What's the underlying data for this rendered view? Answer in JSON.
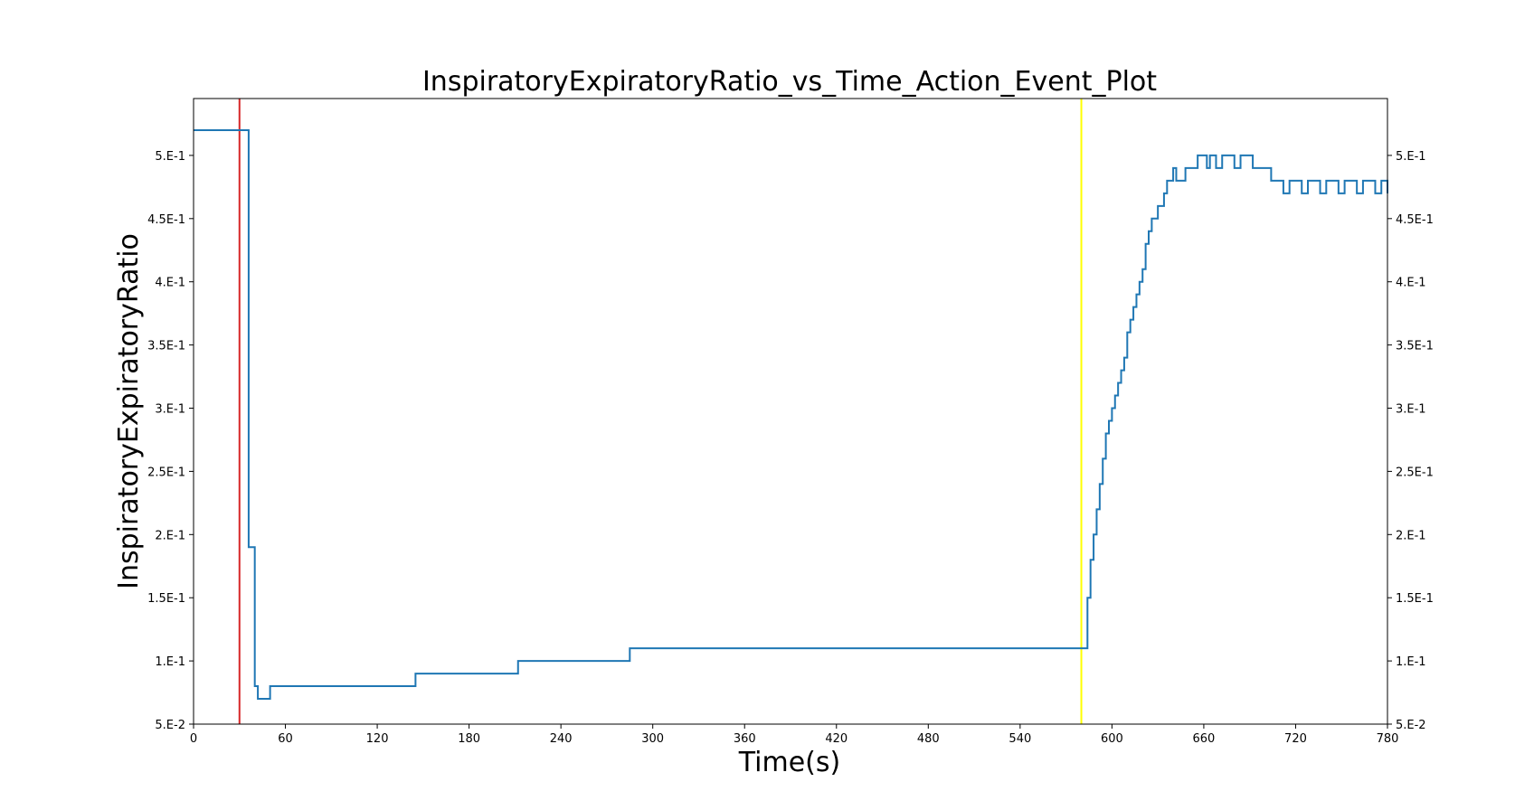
{
  "chart_data": {
    "type": "line",
    "title": "InspiratoryExpiratoryRatio_vs_Time_Action_Event_Plot",
    "xlabel": "Time(s)",
    "ylabel": "InspiratoryExpiratoryRatio",
    "xlim": [
      0,
      780
    ],
    "ylim": [
      0.05,
      0.545
    ],
    "x_ticks": [
      0,
      60,
      120,
      180,
      240,
      300,
      360,
      420,
      480,
      540,
      600,
      660,
      720,
      780
    ],
    "x_tick_labels": [
      "0",
      "60",
      "120",
      "180",
      "240",
      "300",
      "360",
      "420",
      "480",
      "540",
      "600",
      "660",
      "720",
      "780"
    ],
    "y_ticks": [
      0.05,
      0.1,
      0.15,
      0.2,
      0.25,
      0.3,
      0.35,
      0.4,
      0.45,
      0.5
    ],
    "y_tick_labels": [
      "5.E-2",
      "1.E-1",
      "1.5E-1",
      "2.E-1",
      "2.5E-1",
      "3.E-1",
      "3.5E-1",
      "4.E-1",
      "4.5E-1",
      "5.E-1"
    ],
    "right_y_ticks": true,
    "grid": false,
    "step": true,
    "event_lines": [
      {
        "x": 30,
        "color": "#d62728"
      },
      {
        "x": 580,
        "color": "#ffff00"
      }
    ],
    "series": [
      {
        "color": "#1f77b4",
        "x": [
          0,
          35,
          36,
          40,
          42,
          50,
          140,
          145,
          210,
          212,
          280,
          285,
          580,
          584,
          586,
          588,
          590,
          592,
          594,
          596,
          598,
          600,
          602,
          604,
          606,
          608,
          610,
          612,
          614,
          616,
          618,
          620,
          622,
          624,
          626,
          628,
          630,
          632,
          634,
          636,
          638,
          640,
          642,
          645,
          648,
          652,
          656,
          660,
          662,
          664,
          666,
          668,
          672,
          676,
          680,
          684,
          688,
          692,
          696,
          700,
          704,
          708,
          712,
          716,
          720,
          724,
          728,
          732,
          736,
          740,
          744,
          748,
          752,
          756,
          760,
          764,
          768,
          772,
          776,
          780
        ],
        "y": [
          0.52,
          0.52,
          0.19,
          0.08,
          0.07,
          0.08,
          0.08,
          0.09,
          0.09,
          0.1,
          0.1,
          0.11,
          0.11,
          0.15,
          0.18,
          0.2,
          0.22,
          0.24,
          0.26,
          0.28,
          0.29,
          0.3,
          0.31,
          0.32,
          0.33,
          0.34,
          0.36,
          0.37,
          0.38,
          0.39,
          0.4,
          0.41,
          0.43,
          0.44,
          0.45,
          0.45,
          0.46,
          0.46,
          0.47,
          0.48,
          0.48,
          0.49,
          0.48,
          0.48,
          0.49,
          0.49,
          0.5,
          0.5,
          0.49,
          0.5,
          0.5,
          0.49,
          0.5,
          0.5,
          0.49,
          0.5,
          0.5,
          0.49,
          0.49,
          0.49,
          0.48,
          0.48,
          0.47,
          0.48,
          0.48,
          0.47,
          0.48,
          0.48,
          0.47,
          0.48,
          0.48,
          0.47,
          0.48,
          0.48,
          0.47,
          0.48,
          0.48,
          0.47,
          0.48,
          0.47
        ]
      }
    ]
  }
}
